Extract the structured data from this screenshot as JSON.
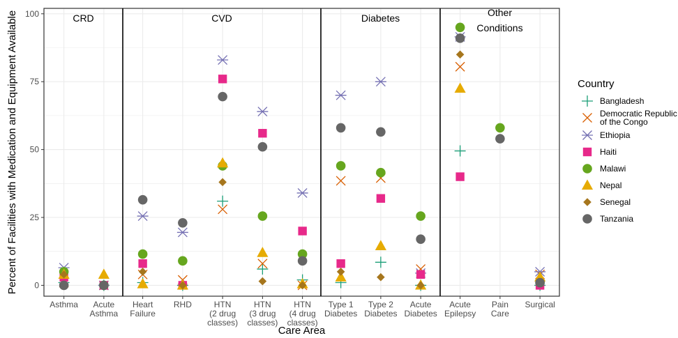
{
  "chart_data": {
    "type": "scatter",
    "ylabel": "Percent of Facilities with Medication and Equipment Available",
    "xlabel": "Care Area",
    "ylim": [
      -4,
      102
    ],
    "yticks": [
      0,
      25,
      50,
      75,
      100
    ],
    "grid": true,
    "facets": [
      {
        "title": [
          "CRD"
        ],
        "categories": [
          "Asthma",
          "Acute Asthma"
        ]
      },
      {
        "title": [
          "CVD"
        ],
        "categories": [
          "Heart Failure",
          "RHD",
          "HTN (2 drug classes)",
          "HTN (3 drug classes)",
          "HTN (4 drug classes)"
        ]
      },
      {
        "title": [
          "Diabetes"
        ],
        "categories": [
          "Type 1 Diabetes",
          "Type 2 Diabetes",
          "Acute Diabetes"
        ]
      },
      {
        "title": [
          "Other",
          "Conditions"
        ],
        "categories": [
          "Acute Epilepsy",
          "Pain Care",
          "Surgical"
        ]
      }
    ],
    "category_labels": {
      "Asthma": [
        "Asthma"
      ],
      "Acute Asthma": [
        "Acute",
        "Asthma"
      ],
      "Heart Failure": [
        "Heart",
        "Failure"
      ],
      "RHD": [
        "RHD"
      ],
      "HTN (2 drug classes)": [
        "HTN",
        "(2 drug",
        "classes)"
      ],
      "HTN (3 drug classes)": [
        "HTN",
        "(3 drug",
        "classes)"
      ],
      "HTN (4 drug classes)": [
        "HTN",
        "(4 drug",
        "classes)"
      ],
      "Type 1 Diabetes": [
        "Type 1",
        "Diabetes"
      ],
      "Type 2 Diabetes": [
        "Type 2",
        "Diabetes"
      ],
      "Acute Diabetes": [
        "Acute",
        "Diabetes"
      ],
      "Acute Epilepsy": [
        "Acute",
        "Epilepsy"
      ],
      "Pain Care": [
        "Pain",
        "Care"
      ],
      "Surgical": [
        "Surgical"
      ]
    },
    "legend": {
      "title": "Country",
      "placement": "right",
      "entries": [
        {
          "name": "Bangladesh",
          "lines": [
            "Bangladesh"
          ],
          "shape": "plus",
          "color": "#1b9e77"
        },
        {
          "name": "Democratic Republic of the Congo",
          "lines": [
            "Democratic Republic",
            "of the Congo"
          ],
          "shape": "cross",
          "color": "#d95f02"
        },
        {
          "name": "Ethiopia",
          "lines": [
            "Ethiopia"
          ],
          "shape": "asterisk",
          "color": "#7570b3"
        },
        {
          "name": "Haiti",
          "lines": [
            "Haiti"
          ],
          "shape": "square",
          "color": "#e7298a"
        },
        {
          "name": "Malawi",
          "lines": [
            "Malawi"
          ],
          "shape": "circle",
          "color": "#66a61e"
        },
        {
          "name": "Nepal",
          "lines": [
            "Nepal"
          ],
          "shape": "triangle",
          "color": "#e6ab02"
        },
        {
          "name": "Senegal",
          "lines": [
            "Senegal"
          ],
          "shape": "diamond",
          "color": "#a6761d"
        },
        {
          "name": "Tanzania",
          "lines": [
            "Tanzania"
          ],
          "shape": "circle",
          "color": "#666666"
        }
      ]
    },
    "series": [
      {
        "name": "Bangladesh",
        "points": [
          {
            "x": "Asthma",
            "y": 1
          },
          {
            "x": "Acute Asthma",
            "y": 0
          },
          {
            "x": "Heart Failure",
            "y": 1
          },
          {
            "x": "RHD",
            "y": 0
          },
          {
            "x": "HTN (2 drug classes)",
            "y": 31
          },
          {
            "x": "HTN (3 drug classes)",
            "y": 6
          },
          {
            "x": "HTN (4 drug classes)",
            "y": 2
          },
          {
            "x": "Type 1 Diabetes",
            "y": 1
          },
          {
            "x": "Type 2 Diabetes",
            "y": 8.5
          },
          {
            "x": "Acute Diabetes",
            "y": 0
          },
          {
            "x": "Acute Epilepsy",
            "y": 49.5
          },
          {
            "x": "Surgical",
            "y": 0
          }
        ]
      },
      {
        "name": "Democratic Republic of the Congo",
        "points": [
          {
            "x": "Asthma",
            "y": 1
          },
          {
            "x": "Acute Asthma",
            "y": 0
          },
          {
            "x": "Heart Failure",
            "y": 4
          },
          {
            "x": "RHD",
            "y": 2
          },
          {
            "x": "HTN (2 drug classes)",
            "y": 28
          },
          {
            "x": "HTN (3 drug classes)",
            "y": 8
          },
          {
            "x": "HTN (4 drug classes)",
            "y": 0
          },
          {
            "x": "Type 1 Diabetes",
            "y": 38.5
          },
          {
            "x": "Type 2 Diabetes",
            "y": 39.5
          },
          {
            "x": "Acute Diabetes",
            "y": 6
          },
          {
            "x": "Acute Epilepsy",
            "y": 80.5
          },
          {
            "x": "Surgical",
            "y": 4
          }
        ]
      },
      {
        "name": "Ethiopia",
        "points": [
          {
            "x": "Asthma",
            "y": 6.5
          },
          {
            "x": "Acute Asthma",
            "y": 0
          },
          {
            "x": "Heart Failure",
            "y": 25.5
          },
          {
            "x": "RHD",
            "y": 19.5
          },
          {
            "x": "HTN (2 drug classes)",
            "y": 83
          },
          {
            "x": "HTN (3 drug classes)",
            "y": 64
          },
          {
            "x": "HTN (4 drug classes)",
            "y": 34
          },
          {
            "x": "Type 1 Diabetes",
            "y": 70
          },
          {
            "x": "Type 2 Diabetes",
            "y": 75
          },
          {
            "x": "Acute Diabetes",
            "y": 4.5
          },
          {
            "x": "Acute Epilepsy",
            "y": 91.5
          },
          {
            "x": "Surgical",
            "y": 5
          }
        ]
      },
      {
        "name": "Haiti",
        "points": [
          {
            "x": "Asthma",
            "y": 3
          },
          {
            "x": "Acute Asthma",
            "y": 0
          },
          {
            "x": "Heart Failure",
            "y": 8
          },
          {
            "x": "RHD",
            "y": 0
          },
          {
            "x": "HTN (2 drug classes)",
            "y": 76
          },
          {
            "x": "HTN (3 drug classes)",
            "y": 56
          },
          {
            "x": "HTN (4 drug classes)",
            "y": 20
          },
          {
            "x": "Type 1 Diabetes",
            "y": 8
          },
          {
            "x": "Type 2 Diabetes",
            "y": 32
          },
          {
            "x": "Acute Diabetes",
            "y": 4
          },
          {
            "x": "Acute Epilepsy",
            "y": 40
          },
          {
            "x": "Surgical",
            "y": 0
          }
        ]
      },
      {
        "name": "Malawi",
        "points": [
          {
            "x": "Asthma",
            "y": 5
          },
          {
            "x": "Acute Asthma",
            "y": 0
          },
          {
            "x": "Heart Failure",
            "y": 11.5
          },
          {
            "x": "RHD",
            "y": 9
          },
          {
            "x": "HTN (2 drug classes)",
            "y": 44
          },
          {
            "x": "HTN (3 drug classes)",
            "y": 25.5
          },
          {
            "x": "HTN (4 drug classes)",
            "y": 11.5
          },
          {
            "x": "Type 1 Diabetes",
            "y": 44
          },
          {
            "x": "Type 2 Diabetes",
            "y": 41.5
          },
          {
            "x": "Acute Diabetes",
            "y": 25.5
          },
          {
            "x": "Acute Epilepsy",
            "y": 95
          },
          {
            "x": "Pain Care",
            "y": 58
          },
          {
            "x": "Surgical",
            "y": 1
          }
        ]
      },
      {
        "name": "Nepal",
        "points": [
          {
            "x": "Asthma",
            "y": 4
          },
          {
            "x": "Acute Asthma",
            "y": 4
          },
          {
            "x": "Heart Failure",
            "y": 0.5
          },
          {
            "x": "RHD",
            "y": 0
          },
          {
            "x": "HTN (2 drug classes)",
            "y": 45
          },
          {
            "x": "HTN (3 drug classes)",
            "y": 12
          },
          {
            "x": "HTN (4 drug classes)",
            "y": 0.5
          },
          {
            "x": "Type 1 Diabetes",
            "y": 3
          },
          {
            "x": "Type 2 Diabetes",
            "y": 14.5
          },
          {
            "x": "Acute Diabetes",
            "y": 0
          },
          {
            "x": "Acute Epilepsy",
            "y": 72.5
          },
          {
            "x": "Surgical",
            "y": 3
          }
        ]
      },
      {
        "name": "Senegal",
        "points": [
          {
            "x": "Asthma",
            "y": 4
          },
          {
            "x": "Acute Asthma",
            "y": 0
          },
          {
            "x": "Heart Failure",
            "y": 5
          },
          {
            "x": "RHD",
            "y": 0
          },
          {
            "x": "HTN (2 drug classes)",
            "y": 38
          },
          {
            "x": "HTN (3 drug classes)",
            "y": 1.5
          },
          {
            "x": "HTN (4 drug classes)",
            "y": 0
          },
          {
            "x": "Type 1 Diabetes",
            "y": 5
          },
          {
            "x": "Type 2 Diabetes",
            "y": 3
          },
          {
            "x": "Acute Diabetes",
            "y": 0
          },
          {
            "x": "Acute Epilepsy",
            "y": 85
          },
          {
            "x": "Surgical",
            "y": 1
          }
        ]
      },
      {
        "name": "Tanzania",
        "points": [
          {
            "x": "Asthma",
            "y": 0
          },
          {
            "x": "Acute Asthma",
            "y": 0
          },
          {
            "x": "Heart Failure",
            "y": 31.5
          },
          {
            "x": "RHD",
            "y": 23
          },
          {
            "x": "HTN (2 drug classes)",
            "y": 69.5
          },
          {
            "x": "HTN (3 drug classes)",
            "y": 51
          },
          {
            "x": "HTN (4 drug classes)",
            "y": 9
          },
          {
            "x": "Type 1 Diabetes",
            "y": 58
          },
          {
            "x": "Type 2 Diabetes",
            "y": 56.5
          },
          {
            "x": "Acute Diabetes",
            "y": 17
          },
          {
            "x": "Acute Epilepsy",
            "y": 91
          },
          {
            "x": "Pain Care",
            "y": 54
          },
          {
            "x": "Surgical",
            "y": 1
          }
        ]
      }
    ]
  }
}
